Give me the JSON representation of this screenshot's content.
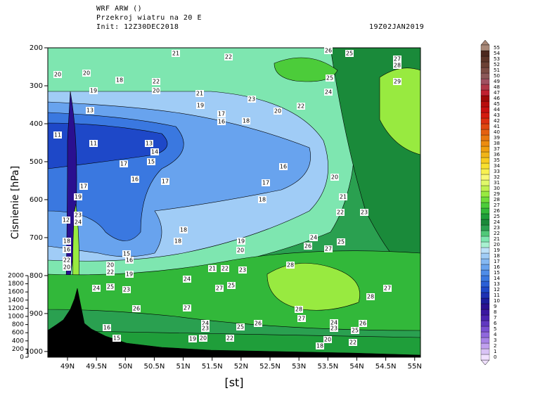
{
  "header": {
    "model": "WRF ARW ()",
    "title": "Przekroj wiatru na 20 E",
    "init": "Init: 12Z30DEC2018",
    "valid": "19Z02JAN2019"
  },
  "chart_data": {
    "type": "contour",
    "ylabel": "Cisnienie  [hPa]",
    "xlabel": "[st]",
    "xlim": [
      48.66,
      55.1
    ],
    "xticks": [
      {
        "value": 49,
        "label": "49N"
      },
      {
        "value": 49.5,
        "label": "49.5N"
      },
      {
        "value": 50,
        "label": "50N"
      },
      {
        "value": 50.5,
        "label": "50.5N"
      },
      {
        "value": 51,
        "label": "51N"
      },
      {
        "value": 51.5,
        "label": "51.5N"
      },
      {
        "value": 52,
        "label": "52N"
      },
      {
        "value": 52.5,
        "label": "52.5N"
      },
      {
        "value": 53,
        "label": "53N"
      },
      {
        "value": 53.5,
        "label": "53.5N"
      },
      {
        "value": 54,
        "label": "54N"
      },
      {
        "value": 54.5,
        "label": "54.5N"
      },
      {
        "value": 55,
        "label": "55N"
      }
    ],
    "ylim": [
      200,
      1015
    ],
    "yticks": [
      200,
      300,
      400,
      500,
      600,
      700,
      800,
      900,
      1000
    ],
    "altitude_lim": [
      0,
      2000
    ],
    "altitude_ticks": [
      0,
      200,
      400,
      600,
      800,
      1000,
      1200,
      1400,
      1600,
      1800,
      2000
    ],
    "contour_labels": [
      21,
      22,
      26,
      25,
      27,
      28,
      20,
      20,
      18,
      22,
      20,
      29,
      19,
      21,
      23,
      25,
      24,
      19,
      17,
      16,
      18,
      20,
      22,
      13,
      11,
      11,
      13,
      14,
      15,
      17,
      16,
      16,
      17,
      17,
      20,
      21,
      18,
      22,
      23,
      12,
      23,
      24,
      17,
      19,
      18,
      18,
      19,
      24,
      26,
      27,
      25,
      20,
      15,
      16,
      28,
      20,
      22,
      19,
      21,
      22,
      23,
      24,
      25,
      23,
      24,
      27,
      25,
      27,
      28,
      26,
      27,
      28,
      27,
      24,
      23,
      25,
      26,
      24,
      23,
      26,
      25,
      16,
      15,
      19,
      20,
      22,
      20,
      18,
      22,
      18,
      16,
      22,
      20
    ],
    "colorbar": {
      "levels": [
        0,
        1,
        2,
        3,
        4,
        5,
        6,
        7,
        8,
        9,
        10,
        11,
        12,
        13,
        14,
        15,
        16,
        17,
        18,
        19,
        20,
        21,
        22,
        23,
        24,
        25,
        26,
        27,
        28,
        29,
        30,
        31,
        32,
        33,
        34,
        35,
        36,
        37,
        38,
        39,
        40,
        41,
        42,
        43,
        44,
        45,
        46,
        47,
        48,
        49,
        50,
        51,
        52,
        53,
        54,
        55
      ],
      "colors": [
        "#f0e0ff",
        "#d9c3f5",
        "#c0a0ee",
        "#a883e6",
        "#9068dd",
        "#7a50d2",
        "#6038c0",
        "#4a24b0",
        "#3a18a0",
        "#2a1090",
        "#1c1c9c",
        "#1e32b4",
        "#1e48c8",
        "#2a5fd6",
        "#3a78e0",
        "#4f8de8",
        "#68a3ee",
        "#84b8f2",
        "#a0ccf6",
        "#bde0f8",
        "#a8f0d0",
        "#7ee6b0",
        "#50c878",
        "#2aa050",
        "#1a8a3a",
        "#1f9e3a",
        "#32b83a",
        "#4ccc3a",
        "#70dc3a",
        "#98ea40",
        "#c0f050",
        "#e0f86a",
        "#f8f878",
        "#f8f050",
        "#f8e030",
        "#f8cc20",
        "#f0b418",
        "#f0a010",
        "#ec8c10",
        "#e87810",
        "#e46010",
        "#e04810",
        "#dc3010",
        "#d41c10",
        "#c81010",
        "#b80c0c",
        "#a00808",
        "#c02030",
        "#b03848",
        "#a05060",
        "#8c5858",
        "#7c4c44",
        "#6c4034",
        "#5c3428",
        "#4c281e",
        "#a88878"
      ]
    }
  }
}
